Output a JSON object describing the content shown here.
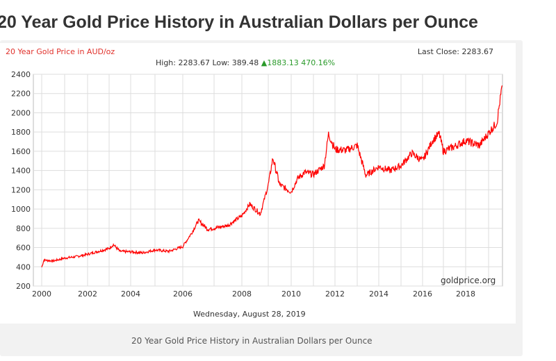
{
  "page_title": "20 Year Gold Price History in Australian Dollars per Ounce",
  "caption": "20 Year Gold Price History in Australian Dollars per Ounce",
  "chart_data": {
    "type": "line",
    "title": "20 Year Gold Price in AUD/oz",
    "last_close": "Last Close: 2283.67",
    "stats": {
      "high": "High: 2283.67",
      "low": "Low: 389.48",
      "change": "▲1883.13 470.16%"
    },
    "date": "Wednesday, August 28, 2019",
    "watermark": "goldprice.org",
    "ylim": [
      200,
      2400
    ],
    "yticks": [
      200,
      400,
      600,
      800,
      1000,
      1200,
      1400,
      1600,
      1800,
      2000,
      2200,
      2400
    ],
    "xticks": [
      "2000",
      "2002",
      "2004",
      "2006",
      "2008",
      "2010",
      "2012",
      "2014",
      "2016",
      "2018"
    ],
    "grid": true,
    "line_color": "#ff0000",
    "series": [
      {
        "points": [
          [
            2000.0,
            395
          ],
          [
            2000.1,
            470
          ],
          [
            2000.5,
            460
          ],
          [
            2001,
            490
          ],
          [
            2001.5,
            505
          ],
          [
            2002,
            530
          ],
          [
            2002.5,
            560
          ],
          [
            2003,
            590
          ],
          [
            2003.2,
            630
          ],
          [
            2003.5,
            560
          ],
          [
            2004,
            555
          ],
          [
            2004.5,
            545
          ],
          [
            2005,
            575
          ],
          [
            2005.5,
            560
          ],
          [
            2006,
            610
          ],
          [
            2006.3,
            760
          ],
          [
            2006.5,
            880
          ],
          [
            2006.8,
            790
          ],
          [
            2007,
            800
          ],
          [
            2007.5,
            830
          ],
          [
            2008,
            930
          ],
          [
            2008.3,
            1050
          ],
          [
            2008.7,
            950
          ],
          [
            2009,
            1250
          ],
          [
            2009.2,
            1530
          ],
          [
            2009.5,
            1250
          ],
          [
            2010,
            1180
          ],
          [
            2010.3,
            1320
          ],
          [
            2010.6,
            1380
          ],
          [
            2011,
            1360
          ],
          [
            2011.5,
            1450
          ],
          [
            2011.7,
            1780
          ],
          [
            2012,
            1620
          ],
          [
            2012.5,
            1610
          ],
          [
            2013,
            1660
          ],
          [
            2013.4,
            1350
          ],
          [
            2014,
            1440
          ],
          [
            2014.5,
            1400
          ],
          [
            2015,
            1450
          ],
          [
            2015.5,
            1580
          ],
          [
            2016,
            1500
          ],
          [
            2016.5,
            1720
          ],
          [
            2016.8,
            1780
          ],
          [
            2017,
            1600
          ],
          [
            2017.5,
            1650
          ],
          [
            2018,
            1710
          ],
          [
            2018.6,
            1660
          ],
          [
            2019,
            1790
          ],
          [
            2019.4,
            1900
          ],
          [
            2019.65,
            2283.67
          ]
        ]
      }
    ]
  }
}
